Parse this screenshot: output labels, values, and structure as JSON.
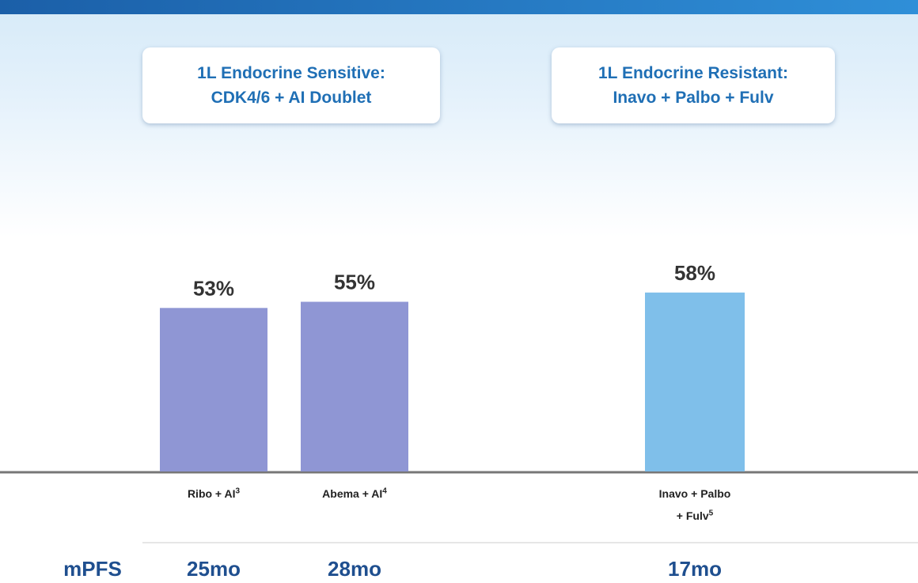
{
  "chart_data": {
    "type": "bar",
    "groups": [
      {
        "title_lines": [
          "1L Endocrine Sensitive:",
          "CDK4/6 + AI Doublet"
        ]
      },
      {
        "title_lines": [
          "1L Endocrine Resistant:",
          "Inavo + Palbo + Fulv"
        ]
      }
    ],
    "categories": [
      "Ribo + AI",
      "Abema + AI",
      "Inavo + Palbo + Fulv"
    ],
    "footnotes": [
      "3",
      "4",
      "5"
    ],
    "values": [
      53,
      55,
      58
    ],
    "value_labels": [
      "53%",
      "55%",
      "58%"
    ],
    "colors": [
      "#8f96d4",
      "#8f96d4",
      "#7fbfea"
    ],
    "mpfs": {
      "label": "mPFS",
      "values": [
        "25mo",
        "28mo",
        "17mo"
      ]
    }
  }
}
